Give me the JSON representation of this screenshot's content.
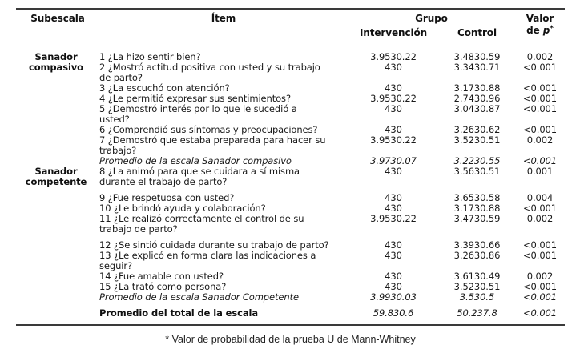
{
  "header": {
    "subescala": "Subescala",
    "item": "Ítem",
    "grupo": "Grupo",
    "intervencion": "Intervención",
    "control": "Control",
    "valor_line1": "Valor",
    "valor_line2_de": "de",
    "valor_line2_p": "p",
    "valor_line2_star": "*"
  },
  "groups": [
    {
      "subescala": "Sanador compasivo",
      "rows": [
        {
          "item": "1 ¿La hizo sentir bien?",
          "intervencion": "3.9530.22",
          "control": "3.4830.59",
          "p": "0.002"
        },
        {
          "item": "2 ¿Mostró actitud positiva con usted y su trabajo\nde parto?",
          "intervencion": "430",
          "control": "3.3430.71",
          "p": "<0.001"
        },
        {
          "item": "3 ¿La escuchó con atención?",
          "intervencion": "430",
          "control": "3.1730.88",
          "p": "<0.001"
        },
        {
          "item": "4 ¿Le permitió expresar sus sentimientos?",
          "intervencion": "3.9530.22",
          "control": "2.7430.96",
          "p": "<0.001"
        },
        {
          "item": "5 ¿Demostró interés por lo que le sucedió a\nusted?",
          "intervencion": "430",
          "control": "3.0430.87",
          "p": "<0.001"
        },
        {
          "item": "6 ¿Comprendió sus síntomas y preocupaciones?",
          "intervencion": "430",
          "control": "3.2630.62",
          "p": "<0.001"
        },
        {
          "item": "7 ¿Demostró que estaba preparada para hacer su\ntrabajo?",
          "intervencion": "3.9530.22",
          "control": "3.5230.51",
          "p": "0.002"
        },
        {
          "item": "Promedio de la escala Sanador compasivo",
          "intervencion": "3.9730.07",
          "control": "3.2230.55",
          "p": "<0.001",
          "item_style": "italic",
          "value_style": "italic"
        }
      ]
    },
    {
      "subescala": "Sanador competente",
      "rows": [
        {
          "item": "8 ¿La animó para que se cuidara a sí misma\ndurante el trabajo de parto?",
          "intervencion": "430",
          "control": "3.5630.51",
          "p": "0.001"
        },
        {
          "item": "9 ¿Fue respetuosa con usted?",
          "intervencion": "430",
          "control": "3.6530.58",
          "p": "0.004",
          "gap": true
        },
        {
          "item": "10 ¿Le brindó ayuda y colaboración?",
          "intervencion": "430",
          "control": "3.1730.88",
          "p": "<0.001"
        },
        {
          "item": "11 ¿Le realizó correctamente el control de su\ntrabajo de parto?",
          "intervencion": "3.9530.22",
          "control": "3.4730.59",
          "p": "0.002"
        },
        {
          "item": "12 ¿Se sintió cuidada durante su trabajo de parto?",
          "intervencion": "430",
          "control": "3.3930.66",
          "p": "<0.001",
          "gap": true
        },
        {
          "item": "13 ¿Le explicó en forma clara las indicaciones a\nseguir?",
          "intervencion": "430",
          "control": "3.2630.86",
          "p": "<0.001"
        },
        {
          "item": "14 ¿Fue amable con usted?",
          "intervencion": "430",
          "control": "3.6130.49",
          "p": "0.002"
        },
        {
          "item": "15 ¿La trató como persona?",
          "intervencion": "430",
          "control": "3.5230.51",
          "p": "<0.001"
        },
        {
          "item": "Promedio de la escala Sanador Competente",
          "intervencion": "3.9930.03",
          "control": "3.530.5",
          "p": "<0.001",
          "item_style": "italic",
          "value_style": "italic"
        }
      ]
    }
  ],
  "total_row": {
    "item": "Promedio del total de la escala",
    "intervencion": "59.830.6",
    "control": "50.237.8",
    "p": "<0.001",
    "item_style": "bold",
    "value_style": "italic"
  },
  "footnote": "* Valor de probabilidad de la prueba U de Mann-Whitney"
}
